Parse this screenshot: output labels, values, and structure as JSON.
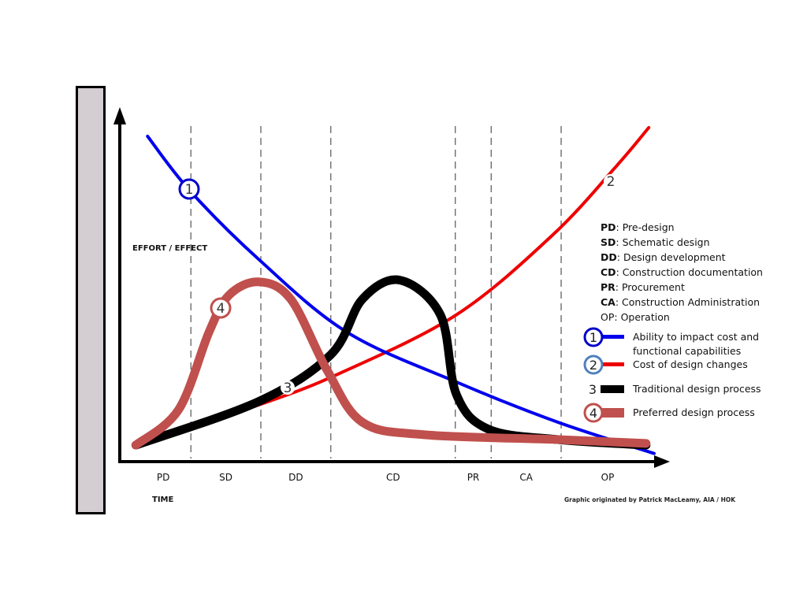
{
  "chart_data": {
    "type": "line",
    "title": "",
    "xlabel": "TIME",
    "ylabel": "EFFORT / EFFECT",
    "xlim": [
      0,
      100
    ],
    "ylim": [
      0,
      100
    ],
    "grid": false,
    "legend_position": "right",
    "phases": [
      {
        "code": "PD",
        "start": 0,
        "end": 13.3
      },
      {
        "code": "SD",
        "start": 13.3,
        "end": 26.4
      },
      {
        "code": "DD",
        "start": 26.4,
        "end": 39.5
      },
      {
        "code": "CD",
        "start": 39.5,
        "end": 62.8
      },
      {
        "code": "PR",
        "start": 62.8,
        "end": 69.5
      },
      {
        "code": "CA",
        "start": 69.5,
        "end": 82.6
      },
      {
        "code": "OP",
        "start": 82.6,
        "end": 100
      }
    ],
    "series": [
      {
        "id": "1",
        "name": "Ability to impact cost and functional capabilities",
        "color": "#0000ee",
        "x": [
          5.2,
          13,
          26,
          42.5,
          63,
          82,
          100
        ],
        "y": [
          92.5,
          77,
          57,
          36,
          21.6,
          10,
          1
        ],
        "marker_at": 1
      },
      {
        "id": "2",
        "name": "Cost of design changes",
        "color": "#ee0000",
        "x": [
          3,
          26,
          41,
          63,
          81,
          93,
          99
        ],
        "y": [
          3.4,
          15,
          24,
          41,
          64,
          84,
          95
        ],
        "marker_at": 4.6
      },
      {
        "id": "3",
        "name": "Traditional design process",
        "color": "#000000",
        "x": [
          3,
          26,
          39.5,
          45.4,
          52.4,
          60,
          63,
          69,
          82,
          98.5
        ],
        "y": [
          3.4,
          16,
          29.5,
          45.5,
          51,
          41,
          18,
          8,
          5,
          3.4
        ],
        "marker_at": 1.5
      },
      {
        "id": "4",
        "name": "Preferred design process",
        "color": "#c0504d",
        "x": [
          3,
          11,
          16.7,
          20.4,
          26,
          32,
          38.8,
          45.4,
          57,
          82,
          98.5
        ],
        "y": [
          3.4,
          13.6,
          36,
          46.6,
          50.5,
          45.5,
          25,
          10,
          6.4,
          5,
          3.9
        ],
        "marker_at": 2.3
      }
    ]
  },
  "legend": {
    "abbreviations": [
      {
        "code": "PD",
        "text": ": Pre-design",
        "bold": true
      },
      {
        "code": "SD",
        "text": ": Schematic design",
        "bold": true
      },
      {
        "code": "DD",
        "text": ": Design development",
        "bold": true
      },
      {
        "code": "CD",
        "text": ": Construction documentation",
        "bold": true
      },
      {
        "code": "PR",
        "text": ": Procurement",
        "bold": true
      },
      {
        "code": "CA",
        "text": ": Construction Administration",
        "bold": true
      },
      {
        "code": "OP",
        "text": ": Operation",
        "bold": false
      }
    ],
    "keys": [
      {
        "num": "1",
        "line1": "Ability to impact cost and",
        "line2": "functional capabilities",
        "ring": "#0000cc",
        "bar": "#0000ee"
      },
      {
        "num": "2",
        "line1": "Cost of design changes",
        "ring": "#4f81bd",
        "bar": "#ee0000"
      },
      {
        "num": "3",
        "line1": "Traditional design process",
        "bar": "#000000"
      },
      {
        "num": "4",
        "line1": "Preferred design process",
        "ring": "#c0504d",
        "bar": "#c0504d"
      }
    ]
  },
  "axis": {
    "y_label": "EFFORT / EFFECT",
    "x_label": "TIME"
  },
  "credit": "Graphic originated by Patrick MacLeamy, AIA / HOK"
}
